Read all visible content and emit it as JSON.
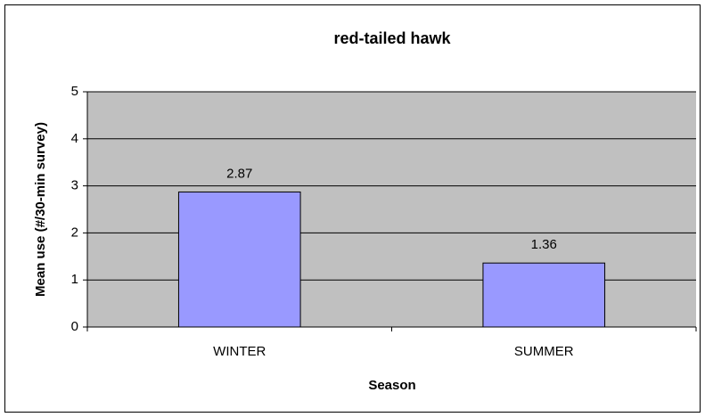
{
  "chart_data": {
    "type": "bar",
    "title": "red-tailed hawk",
    "x_label": "Season",
    "y_label": "Mean use (#/30-min survey)",
    "categories": [
      "WINTER",
      "SUMMER"
    ],
    "values": [
      2.87,
      1.36
    ],
    "color": "#9999ff",
    "ylim": [
      0,
      5
    ],
    "yticks": [
      0,
      1,
      2,
      3,
      4,
      5
    ],
    "grid": true
  }
}
